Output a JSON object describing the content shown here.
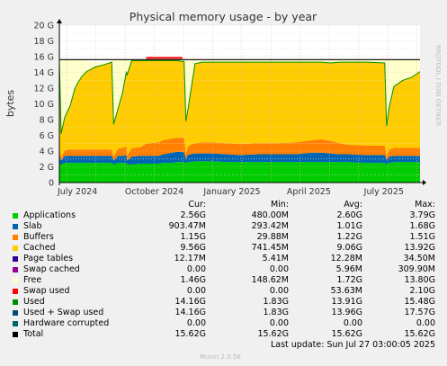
{
  "chart_data": {
    "type": "area",
    "title": "Physical memory usage - by year",
    "ylabel": "bytes",
    "watermark": "RRDTOOL / TOBI OETIKER",
    "ylim": [
      0,
      20
    ],
    "yunit": "G",
    "yticks": [
      "0",
      "2 G",
      "4 G",
      "6 G",
      "8 G",
      "10 G",
      "12 G",
      "14 G",
      "16 G",
      "18 G",
      "20 G"
    ],
    "xticks": [
      "July 2024",
      "October 2024",
      "January 2025",
      "April 2025",
      "July 2025"
    ],
    "grid": true,
    "x": [
      0,
      2,
      6,
      12,
      17,
      20,
      25,
      30,
      40,
      50,
      58,
      60,
      65,
      70,
      74,
      75,
      80,
      90,
      95,
      100,
      110,
      115,
      120,
      125,
      130,
      135,
      138,
      140,
      142,
      145,
      150,
      158,
      170,
      185,
      200,
      220,
      240,
      260,
      280,
      290,
      300,
      310,
      320,
      340,
      360,
      362,
      365,
      370,
      380,
      390,
      399
    ],
    "series": [
      {
        "name": "Applications",
        "color": "#00CC00",
        "values": [
          2.3,
          2.3,
          2.5,
          2.5,
          2.5,
          2.5,
          2.5,
          2.5,
          2.5,
          2.5,
          2.5,
          2.3,
          2.5,
          2.5,
          2.5,
          2.3,
          2.3,
          2.4,
          2.4,
          2.4,
          2.4,
          2.5,
          2.5,
          2.5,
          2.6,
          2.6,
          2.6,
          2.5,
          2.6,
          2.6,
          2.7,
          2.7,
          2.7,
          2.6,
          2.6,
          2.6,
          2.6,
          2.6,
          2.6,
          2.6,
          2.6,
          2.6,
          2.6,
          2.5,
          2.5,
          2.3,
          2.5,
          2.6,
          2.6,
          2.6,
          2.6
        ]
      },
      {
        "name": "Slab",
        "color": "#0066B3",
        "values": [
          1.2,
          0.5,
          0.9,
          0.9,
          0.9,
          0.9,
          0.9,
          0.9,
          0.9,
          0.9,
          0.9,
          0.5,
          0.9,
          0.9,
          1.0,
          0.5,
          1.0,
          1.0,
          1.0,
          1.0,
          1.0,
          1.1,
          1.2,
          1.3,
          1.3,
          1.3,
          1.3,
          0.5,
          0.9,
          1.0,
          1.0,
          1.0,
          1.0,
          1.0,
          0.9,
          1.0,
          1.0,
          1.0,
          1.2,
          1.2,
          1.1,
          1.0,
          1.0,
          1.0,
          1.0,
          0.6,
          0.8,
          0.8,
          0.8,
          0.8,
          0.8
        ]
      },
      {
        "name": "Buffers",
        "color": "#FF8000",
        "values": [
          1.0,
          0.4,
          0.7,
          0.8,
          0.8,
          0.8,
          0.8,
          0.8,
          0.8,
          0.8,
          0.8,
          0.5,
          0.9,
          1.0,
          1.1,
          0.6,
          1.1,
          1.1,
          1.5,
          1.6,
          1.7,
          1.8,
          1.8,
          1.8,
          1.8,
          1.8,
          1.8,
          0.6,
          1.0,
          1.2,
          1.3,
          1.4,
          1.4,
          1.4,
          1.4,
          1.4,
          1.4,
          1.5,
          1.6,
          1.7,
          1.6,
          1.4,
          1.2,
          1.2,
          1.2,
          0.5,
          0.9,
          1.0,
          1.0,
          1.0,
          1.0
        ]
      },
      {
        "name": "Cached",
        "color": "#FFCC00",
        "values": [
          10.8,
          3.0,
          4.2,
          5.6,
          7.7,
          8.4,
          9.3,
          9.9,
          10.5,
          10.8,
          11.1,
          4.1,
          5.1,
          7.1,
          9.4,
          10.3,
          11.1,
          11.0,
          10.6,
          10.5,
          10.4,
          10.1,
          10.0,
          9.9,
          9.8,
          9.7,
          9.7,
          4.2,
          4.6,
          6.5,
          10.1,
          10.2,
          10.2,
          10.3,
          10.4,
          10.3,
          10.3,
          10.2,
          9.9,
          9.8,
          9.9,
          10.3,
          10.5,
          10.6,
          10.5,
          3.8,
          5.4,
          7.8,
          8.6,
          9.0,
          9.7
        ]
      },
      {
        "name": "Free",
        "color": "#FFFFCC",
        "values": [
          0.3,
          9.4,
          7.3,
          5.8,
          3.7,
          3.0,
          2.1,
          1.4,
          0.6,
          0.3,
          0.0,
          8.2,
          6.2,
          4.1,
          1.6,
          1.9,
          0.1,
          0.1,
          0.1,
          0.1,
          0.1,
          0.1,
          0.1,
          0.1,
          0.1,
          0.1,
          0.1,
          8.0,
          6.5,
          4.3,
          0.5,
          0.3,
          0.3,
          0.3,
          0.3,
          0.3,
          0.3,
          0.3,
          0.3,
          0.3,
          0.4,
          0.3,
          0.3,
          0.3,
          0.4,
          8.4,
          6.0,
          3.4,
          2.6,
          2.2,
          1.5
        ]
      }
    ],
    "total": 15.62,
    "swap_used_peak": {
      "start": 96,
      "end": 136,
      "value": 2.1
    }
  },
  "legend": {
    "columns": [
      "Cur:",
      "Min:",
      "Avg:",
      "Max:"
    ],
    "rows": [
      {
        "label": "Applications",
        "color": "#00CC00",
        "cur": "2.56G",
        "min": "480.00M",
        "avg": "2.60G",
        "max": "3.79G"
      },
      {
        "label": "Slab",
        "color": "#0066B3",
        "cur": "903.47M",
        "min": "293.42M",
        "avg": "1.01G",
        "max": "1.68G"
      },
      {
        "label": "Buffers",
        "color": "#FF8000",
        "cur": "1.15G",
        "min": "29.88M",
        "avg": "1.22G",
        "max": "1.51G"
      },
      {
        "label": "Cached",
        "color": "#FFCC00",
        "cur": "9.56G",
        "min": "741.45M",
        "avg": "9.06G",
        "max": "13.92G"
      },
      {
        "label": "Page tables",
        "color": "#330099",
        "cur": "12.17M",
        "min": "5.41M",
        "avg": "12.28M",
        "max": "34.50M"
      },
      {
        "label": "Swap cached",
        "color": "#990099",
        "cur": "0.00",
        "min": "0.00",
        "avg": "5.96M",
        "max": "309.90M"
      },
      {
        "label": "Free",
        "color": "#FFFFCC",
        "cur": "1.46G",
        "min": "148.62M",
        "avg": "1.72G",
        "max": "13.80G"
      },
      {
        "label": "Swap used",
        "color": "#FF0000",
        "cur": "0.00",
        "min": "0.00",
        "avg": "53.63M",
        "max": "2.10G"
      },
      {
        "label": "Used",
        "color": "#008F00",
        "cur": "14.16G",
        "min": "1.83G",
        "avg": "13.91G",
        "max": "15.48G"
      },
      {
        "label": "Used + Swap used",
        "color": "#00487D",
        "cur": "14.16G",
        "min": "1.83G",
        "avg": "13.96G",
        "max": "17.57G"
      },
      {
        "label": "Hardware corrupted",
        "color": "#006666",
        "cur": "0.00",
        "min": "0.00",
        "avg": "0.00",
        "max": "0.00"
      },
      {
        "label": "Total",
        "color": "#000000",
        "cur": "15.62G",
        "min": "15.62G",
        "avg": "15.62G",
        "max": "15.62G"
      }
    ]
  },
  "footer": {
    "last_update": "Last update:  Sun Jul 27 03:00:05 2025",
    "munin": "Munin 2.0.56"
  }
}
